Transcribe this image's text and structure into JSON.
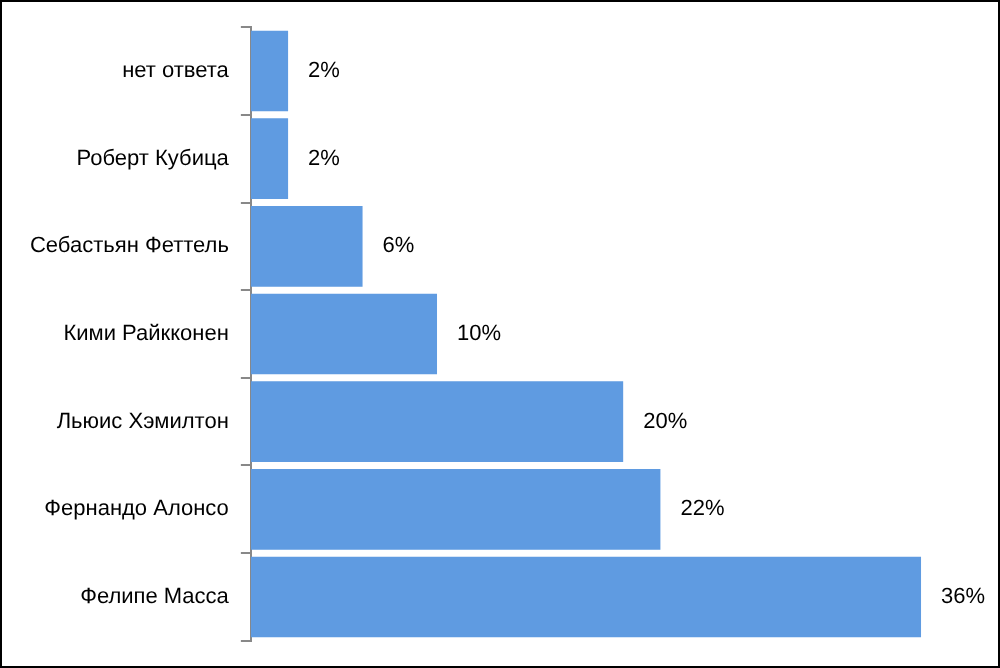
{
  "chart_data": {
    "type": "bar",
    "orientation": "horizontal",
    "categories": [
      "нет ответа",
      "Роберт Кубица",
      "Себастьян Феттель",
      "Кими Райкконен",
      "Льюис Хэмилтон",
      "Фернандо Алонсо",
      "Фелипе Масса"
    ],
    "values": [
      2,
      2,
      6,
      10,
      20,
      22,
      36
    ],
    "value_labels": [
      "2%",
      "2%",
      "6%",
      "10%",
      "20%",
      "22%",
      "36%"
    ],
    "color": "#5f9be1",
    "legend": false,
    "tick_labels": "y"
  }
}
